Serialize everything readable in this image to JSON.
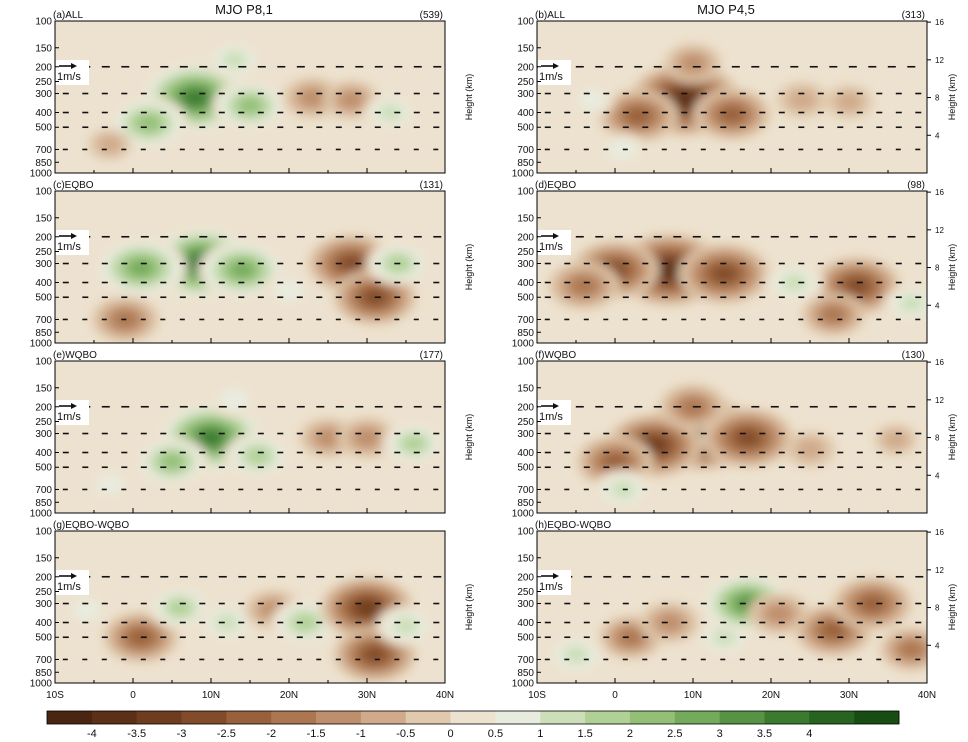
{
  "figure": {
    "column_titles": [
      "MJO P8,1",
      "MJO P4,5"
    ],
    "y_tick_labels": [
      "100",
      "150",
      "200",
      "250",
      "300",
      "400",
      "500",
      "700",
      "850",
      "1000"
    ],
    "right_axis_label": "Height (km)",
    "right_tick_labels": [
      "16",
      "12",
      "8",
      "4"
    ],
    "x_tick_labels": [
      "10S",
      "0",
      "10N",
      "20N",
      "30N",
      "40N"
    ],
    "ref_vector_label": "1m/s",
    "colorbar_labels": [
      "-4",
      "-3.5",
      "-3",
      "-2.5",
      "-2",
      "-1.5",
      "-1",
      "-0.5",
      "0",
      "0.5",
      "1",
      "1.5",
      "2",
      "2.5",
      "3",
      "3.5",
      "4"
    ],
    "colorbar_colors": [
      "#4a2511",
      "#5c3017",
      "#6e3c1e",
      "#824c2b",
      "#98603b",
      "#ab7650",
      "#be8f6c",
      "#d0aa8b",
      "#e0c9ad",
      "#ede2cf",
      "#e8ecdf",
      "#ccdfb9",
      "#b0d096",
      "#93bf77",
      "#74aa5b",
      "#569344",
      "#3b7b30",
      "#27641f",
      "#174c12"
    ]
  },
  "chart_data": {
    "type": "heatmap",
    "panel_layout": "4 rows x 2 columns",
    "x_range": [
      "10S",
      "40N"
    ],
    "y_range_hpa": [
      1000,
      100
    ],
    "y_log_scale": true,
    "y_ticks_hpa": [
      100,
      150,
      200,
      250,
      300,
      400,
      500,
      700,
      850,
      1000
    ],
    "right_axis_km": [
      16,
      12,
      8,
      4
    ],
    "colorbar_range": [
      -4,
      4
    ],
    "colorbar_step": 0.5,
    "panels": [
      {
        "label": "(a)ALL",
        "count": "(539)",
        "column": 0,
        "row": 0,
        "dominant_sign": "positive",
        "features": [
          {
            "lat": 8,
            "p": 320,
            "value": 4.2
          },
          {
            "lat": 2,
            "p": 470,
            "value": 2.6
          },
          {
            "lat": 15,
            "p": 360,
            "value": 2.4
          },
          {
            "lat": 13,
            "p": 180,
            "value": 1.5
          },
          {
            "lat": 23,
            "p": 320,
            "value": -1.6
          },
          {
            "lat": 28,
            "p": 330,
            "value": -1.4
          },
          {
            "lat": 33,
            "p": 400,
            "value": 1.3
          },
          {
            "lat": -3,
            "p": 650,
            "value": -0.8
          }
        ]
      },
      {
        "label": "(b)ALL",
        "count": "(313)",
        "column": 1,
        "row": 0,
        "dominant_sign": "negative",
        "features": [
          {
            "lat": 9,
            "p": 330,
            "value": -4.2
          },
          {
            "lat": 3,
            "p": 420,
            "value": -2.6
          },
          {
            "lat": 15,
            "p": 410,
            "value": -2.5
          },
          {
            "lat": 10,
            "p": 190,
            "value": -1.5
          },
          {
            "lat": 24,
            "p": 330,
            "value": -1.2
          },
          {
            "lat": 30,
            "p": 340,
            "value": -1.0
          },
          {
            "lat": -3,
            "p": 330,
            "value": 0.9
          },
          {
            "lat": 1,
            "p": 700,
            "value": 1.0
          }
        ]
      },
      {
        "label": "(c)EQBO",
        "count": "(131)",
        "column": 0,
        "row": 1,
        "dominant_sign": "positive",
        "features": [
          {
            "lat": 9,
            "p": 300,
            "value": 4.3
          },
          {
            "lat": 1,
            "p": 320,
            "value": 3.2
          },
          {
            "lat": 14,
            "p": 330,
            "value": 3.0
          },
          {
            "lat": 28,
            "p": 300,
            "value": -3.0
          },
          {
            "lat": 31,
            "p": 500,
            "value": -2.8
          },
          {
            "lat": -1,
            "p": 700,
            "value": -2.0
          },
          {
            "lat": 34,
            "p": 300,
            "value": 1.8
          },
          {
            "lat": 20,
            "p": 450,
            "value": 1.2
          }
        ]
      },
      {
        "label": "(d)EQBO",
        "count": "(98)",
        "column": 1,
        "row": 1,
        "dominant_sign": "negative",
        "features": [
          {
            "lat": 7,
            "p": 330,
            "value": -4.2
          },
          {
            "lat": 0,
            "p": 330,
            "value": -3.0
          },
          {
            "lat": 14,
            "p": 350,
            "value": -3.2
          },
          {
            "lat": -4,
            "p": 420,
            "value": -2.2
          },
          {
            "lat": 31,
            "p": 420,
            "value": -3.0
          },
          {
            "lat": 28,
            "p": 650,
            "value": -1.8
          },
          {
            "lat": 23,
            "p": 400,
            "value": 1.6
          },
          {
            "lat": 38,
            "p": 550,
            "value": 1.4
          }
        ]
      },
      {
        "label": "(e)WQBO",
        "count": "(177)",
        "column": 0,
        "row": 2,
        "dominant_sign": "positive",
        "features": [
          {
            "lat": 10,
            "p": 320,
            "value": 4.1
          },
          {
            "lat": 5,
            "p": 460,
            "value": 2.3
          },
          {
            "lat": 16,
            "p": 420,
            "value": 2.0
          },
          {
            "lat": 13,
            "p": 180,
            "value": 1.2
          },
          {
            "lat": 25,
            "p": 320,
            "value": -1.5
          },
          {
            "lat": 30,
            "p": 320,
            "value": -1.6
          },
          {
            "lat": 36,
            "p": 350,
            "value": 1.8
          },
          {
            "lat": -3,
            "p": 650,
            "value": 0.9
          }
        ]
      },
      {
        "label": "(f)WQBO",
        "count": "(130)",
        "column": 1,
        "row": 2,
        "dominant_sign": "negative",
        "features": [
          {
            "lat": 11,
            "p": 300,
            "value": -4.3
          },
          {
            "lat": 5,
            "p": 360,
            "value": -3.4
          },
          {
            "lat": 17,
            "p": 320,
            "value": -3.2
          },
          {
            "lat": 0,
            "p": 460,
            "value": -2.5
          },
          {
            "lat": 10,
            "p": 200,
            "value": -2.0
          },
          {
            "lat": 25,
            "p": 380,
            "value": -1.2
          },
          {
            "lat": 1,
            "p": 700,
            "value": 1.5
          },
          {
            "lat": 36,
            "p": 330,
            "value": -0.8
          }
        ]
      },
      {
        "label": "(g)EQBO-WQBO",
        "count": "",
        "column": 0,
        "row": 3,
        "dominant_sign": "mixed",
        "features": [
          {
            "lat": 1,
            "p": 500,
            "value": -2.4
          },
          {
            "lat": 6,
            "p": 320,
            "value": 1.8
          },
          {
            "lat": 12,
            "p": 400,
            "value": 1.5
          },
          {
            "lat": 18,
            "p": 330,
            "value": -1.5
          },
          {
            "lat": 22,
            "p": 400,
            "value": 2.0
          },
          {
            "lat": 30,
            "p": 320,
            "value": -3.3
          },
          {
            "lat": 31,
            "p": 650,
            "value": -2.8
          },
          {
            "lat": 35,
            "p": 420,
            "value": 1.6
          },
          {
            "lat": -6,
            "p": 330,
            "value": 1.0
          }
        ]
      },
      {
        "label": "(h)EQBO-WQBO",
        "count": "",
        "column": 1,
        "row": 3,
        "dominant_sign": "mixed",
        "features": [
          {
            "lat": 2,
            "p": 500,
            "value": -1.8
          },
          {
            "lat": 7,
            "p": 400,
            "value": -1.6
          },
          {
            "lat": 14,
            "p": 500,
            "value": 1.5
          },
          {
            "lat": 17,
            "p": 300,
            "value": 3.3
          },
          {
            "lat": 21,
            "p": 350,
            "value": -1.7
          },
          {
            "lat": 28,
            "p": 450,
            "value": -2.5
          },
          {
            "lat": 33,
            "p": 300,
            "value": -2.6
          },
          {
            "lat": 38,
            "p": 600,
            "value": -1.8
          },
          {
            "lat": -5,
            "p": 650,
            "value": 1.6
          }
        ]
      }
    ],
    "vector_levels_hpa": [
      200,
      300,
      400,
      500,
      700
    ]
  }
}
